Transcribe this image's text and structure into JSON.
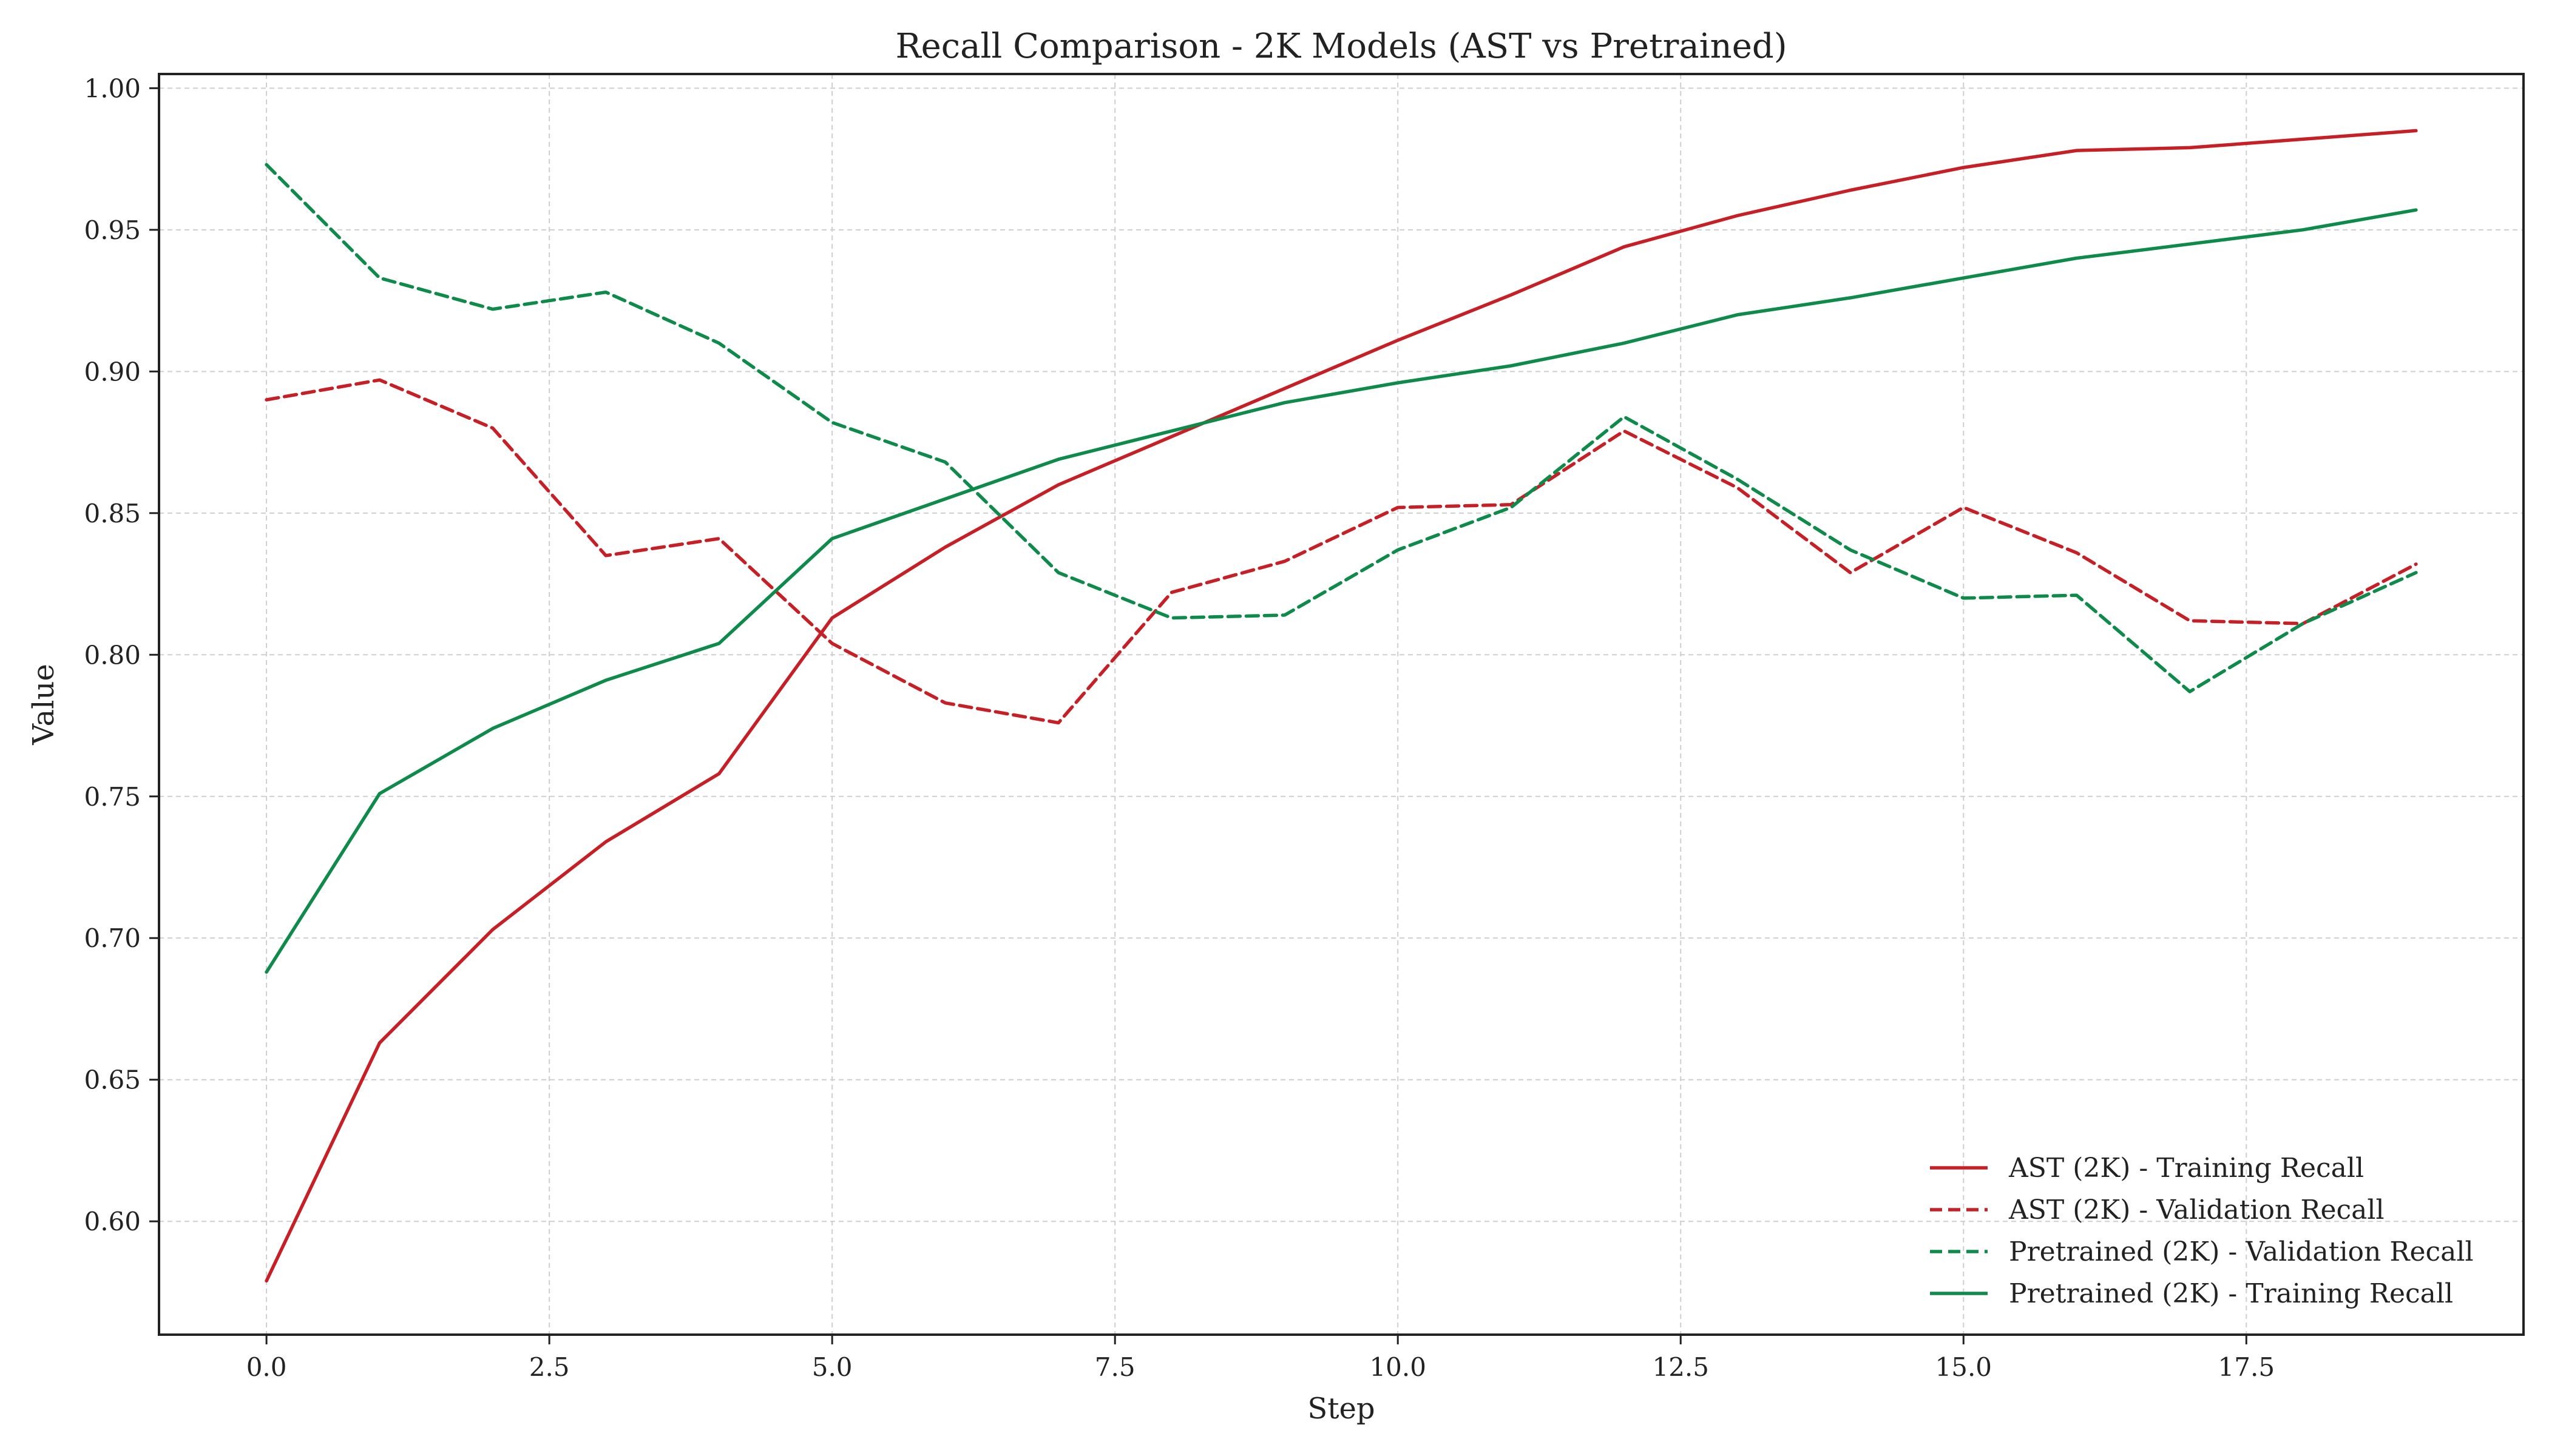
{
  "chart_data": {
    "type": "line",
    "title": "Recall Comparison - 2K Models (AST vs Pretrained)",
    "xlabel": "Step",
    "ylabel": "Value",
    "xlim": [
      -0.95,
      19.95
    ],
    "ylim": [
      0.56,
      1.005
    ],
    "x_ticks": [
      0.0,
      2.5,
      5.0,
      7.5,
      10.0,
      12.5,
      15.0,
      17.5
    ],
    "x_tick_labels": [
      "0.0",
      "2.5",
      "5.0",
      "7.5",
      "10.0",
      "12.5",
      "15.0",
      "17.5"
    ],
    "y_ticks": [
      0.6,
      0.65,
      0.7,
      0.75,
      0.8,
      0.85,
      0.9,
      0.95,
      1.0
    ],
    "y_tick_labels": [
      "0.60",
      "0.65",
      "0.70",
      "0.75",
      "0.80",
      "0.85",
      "0.90",
      "0.95",
      "1.00"
    ],
    "grid": true,
    "legend_position": "bottom-right",
    "x": [
      0,
      1,
      2,
      3,
      4,
      5,
      6,
      7,
      8,
      9,
      10,
      11,
      12,
      13,
      14,
      15,
      16,
      17,
      18,
      19
    ],
    "series": [
      {
        "name": "AST (2K) - Training Recall",
        "color": "#c62026",
        "style": "solid",
        "values": [
          0.579,
          0.663,
          0.703,
          0.734,
          0.758,
          0.813,
          0.838,
          0.86,
          0.877,
          0.894,
          0.911,
          0.927,
          0.944,
          0.955,
          0.964,
          0.972,
          0.978,
          0.979,
          0.982,
          0.985
        ]
      },
      {
        "name": "AST (2K) - Validation Recall",
        "color": "#c62026",
        "style": "dashed",
        "values": [
          0.89,
          0.897,
          0.88,
          0.835,
          0.841,
          0.804,
          0.783,
          0.776,
          0.822,
          0.833,
          0.852,
          0.853,
          0.879,
          0.859,
          0.829,
          0.852,
          0.836,
          0.812,
          0.811,
          0.832
        ]
      },
      {
        "name": "Pretrained (2K) - Validation Recall",
        "color": "#0e8a4a",
        "style": "dashed",
        "values": [
          0.973,
          0.933,
          0.922,
          0.928,
          0.91,
          0.882,
          0.868,
          0.829,
          0.813,
          0.814,
          0.837,
          0.852,
          0.884,
          0.862,
          0.837,
          0.82,
          0.821,
          0.787,
          0.811,
          0.829
        ]
      },
      {
        "name": "Pretrained (2K) - Training Recall",
        "color": "#0e8a4a",
        "style": "solid",
        "values": [
          0.688,
          0.751,
          0.774,
          0.791,
          0.804,
          0.841,
          0.855,
          0.869,
          0.879,
          0.889,
          0.896,
          0.902,
          0.91,
          0.92,
          0.926,
          0.933,
          0.94,
          0.945,
          0.95,
          0.957
        ]
      }
    ]
  }
}
